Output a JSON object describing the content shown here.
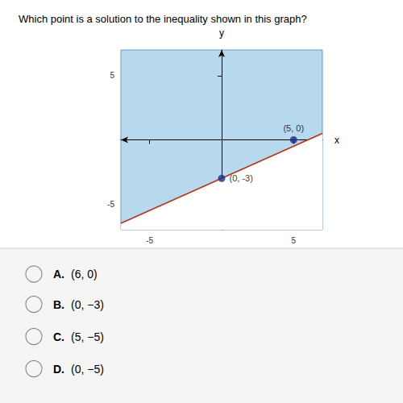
{
  "chart_data": {
    "type": "scatter",
    "title": "Which point is a solution to the inequality shown in this graph?",
    "x_label": "x",
    "y_label": "y",
    "xlim": [
      -7,
      7
    ],
    "ylim": [
      -7,
      7
    ],
    "xticks": [
      -5,
      5
    ],
    "yticks": [
      -5,
      5
    ],
    "grid": false,
    "color": "#b8d8ed",
    "series": [
      {
        "type": "line",
        "color": "#bb3311",
        "x": [
          -7,
          7
        ],
        "values": [
          -6.5,
          0.5
        ]
      },
      {
        "type": "scatter",
        "color": "#1a2d8a",
        "x": [
          5,
          0
        ],
        "values": [
          0,
          -3
        ],
        "value_labels": [
          "(5, 0)",
          "(0, -3)"
        ]
      }
    ],
    "annotations": [
      [
        "A.",
        "(6, 0)"
      ],
      [
        "B.",
        "(0, −3)"
      ],
      [
        "C.",
        "(5, −5)"
      ],
      [
        "D.",
        "(0, −5)"
      ]
    ]
  }
}
